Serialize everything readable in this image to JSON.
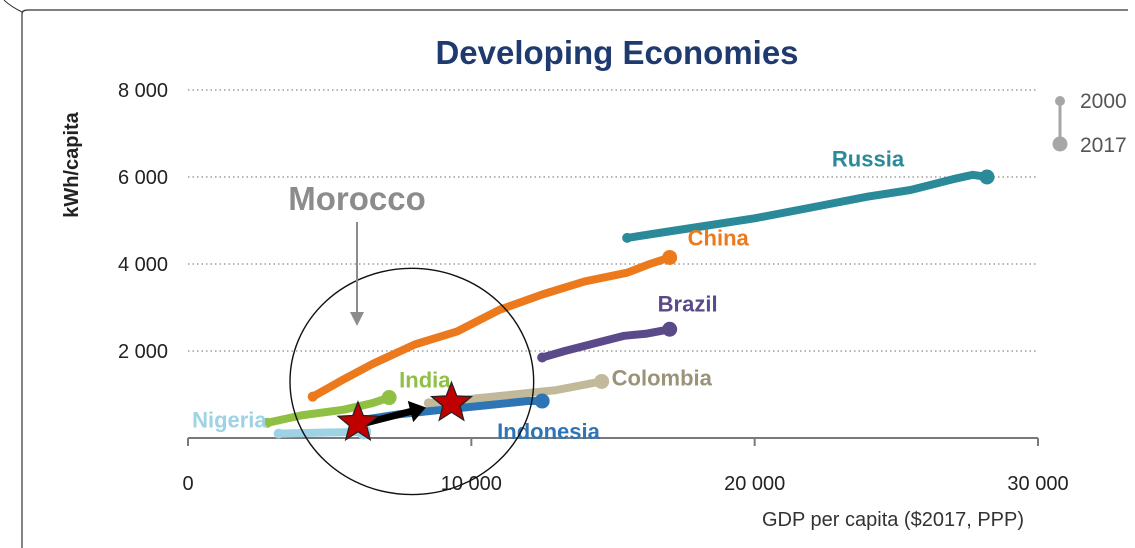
{
  "chart_data": {
    "type": "line",
    "title": "Developing Economies",
    "xlabel": "GDP per capita ($2017, PPP)",
    "ylabel": "kWh/capita",
    "xlim": [
      0,
      30000
    ],
    "ylim": [
      0,
      8000
    ],
    "x_ticks": [
      0,
      10000,
      20000,
      30000
    ],
    "x_tick_labels": [
      "0",
      "10 000",
      "20 000",
      "30 000"
    ],
    "y_ticks": [
      2000,
      4000,
      6000,
      8000
    ],
    "y_tick_labels": [
      "2 000",
      "4 000",
      "6 000",
      "8 000"
    ],
    "grid": "horizontal dotted",
    "legend": {
      "position": "top-right",
      "start_label": "2000",
      "end_label": "2017",
      "color": "#a6a6a6"
    },
    "series": [
      {
        "name": "Russia",
        "color": "#2b8a99",
        "label_color": "#2b8a99",
        "points": [
          [
            15500,
            4600
          ],
          [
            16500,
            4700
          ],
          [
            18000,
            4850
          ],
          [
            20000,
            5050
          ],
          [
            22000,
            5300
          ],
          [
            24000,
            5550
          ],
          [
            25500,
            5700
          ],
          [
            27000,
            5950
          ],
          [
            27700,
            6050
          ],
          [
            28200,
            6000
          ]
        ]
      },
      {
        "name": "China",
        "color": "#ec7a1c",
        "label_color": "#ec7a1c",
        "points": [
          [
            4400,
            950
          ],
          [
            5500,
            1350
          ],
          [
            6500,
            1700
          ],
          [
            8000,
            2150
          ],
          [
            9500,
            2450
          ],
          [
            11000,
            2950
          ],
          [
            12500,
            3300
          ],
          [
            14000,
            3600
          ],
          [
            15500,
            3800
          ],
          [
            16300,
            4000
          ],
          [
            17000,
            4150
          ]
        ]
      },
      {
        "name": "Brazil",
        "color": "#5b4a8a",
        "label_color": "#5b4a8a",
        "points": [
          [
            12500,
            1850
          ],
          [
            13300,
            2000
          ],
          [
            14500,
            2200
          ],
          [
            15400,
            2350
          ],
          [
            16200,
            2400
          ],
          [
            17000,
            2500
          ]
        ]
      },
      {
        "name": "Colombia",
        "color": "#c2b99a",
        "label_color": "#9b9378",
        "points": [
          [
            8500,
            800
          ],
          [
            10000,
            900
          ],
          [
            11500,
            1000
          ],
          [
            13000,
            1100
          ],
          [
            14200,
            1250
          ],
          [
            14600,
            1300
          ]
        ]
      },
      {
        "name": "India",
        "color": "#8fc044",
        "label_color": "#8fc044",
        "points": [
          [
            2800,
            350
          ],
          [
            4000,
            520
          ],
          [
            5500,
            650
          ],
          [
            6500,
            800
          ],
          [
            7100,
            930
          ]
        ]
      },
      {
        "name": "Indonesia",
        "color": "#2e75b6",
        "label_color": "#2e75b6",
        "points": [
          [
            6000,
            400
          ],
          [
            7500,
            550
          ],
          [
            9000,
            650
          ],
          [
            10500,
            750
          ],
          [
            12000,
            850
          ],
          [
            12500,
            850
          ]
        ]
      },
      {
        "name": "Nigeria",
        "color": "#9dd3e4",
        "label_color": "#9dd3e4",
        "points": [
          [
            3200,
            100
          ],
          [
            4500,
            120
          ],
          [
            5500,
            130
          ],
          [
            6200,
            140
          ]
        ]
      }
    ],
    "annotations": {
      "morocco_label": "Morocco",
      "morocco_arrow_color": "#8c8c8c",
      "ellipse": {
        "cx": 7900,
        "cy": 1300,
        "rx": 4300,
        "ry": 2600
      },
      "star_color": "#c00000",
      "stars": [
        [
          6000,
          350
        ],
        [
          9300,
          800
        ]
      ],
      "trajectory_color": "#000000",
      "trajectory": [
        [
          6300,
          350
        ],
        [
          8400,
          700
        ]
      ]
    }
  }
}
